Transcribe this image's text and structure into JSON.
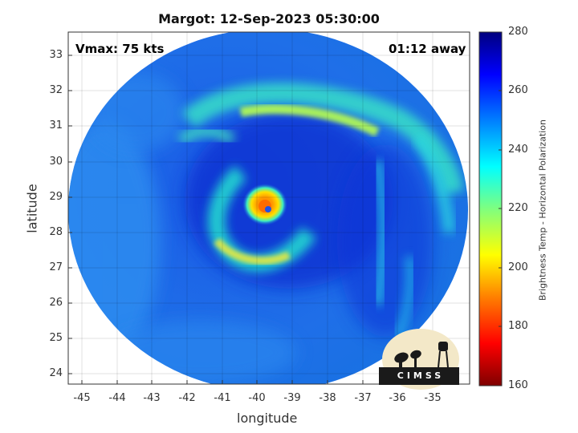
{
  "title": "Margot: 12-Sep-2023 05:30:00",
  "vmax_label": "Vmax: 75 kts",
  "away_label": "01:12 away",
  "x_axis": {
    "label": "longitude",
    "ticks": [
      "-45",
      "-44",
      "-43",
      "-42",
      "-41",
      "-40",
      "-39",
      "-38",
      "-37",
      "-36",
      "-35"
    ]
  },
  "y_axis": {
    "label": "latitude",
    "ticks": [
      "24",
      "25",
      "26",
      "27",
      "28",
      "29",
      "30",
      "31",
      "32",
      "33"
    ]
  },
  "colorbar": {
    "label": "Brightness Temp - Horizontal Polarization",
    "ticks": [
      "160",
      "180",
      "200",
      "220",
      "240",
      "260",
      "280"
    ],
    "colors": [
      "#7f0000",
      "#ff0000",
      "#ff7f00",
      "#ffff00",
      "#7fff7f",
      "#00ffff",
      "#007fff",
      "#0000ff",
      "#00007f"
    ]
  },
  "logo": {
    "text": "CIMSS"
  }
}
